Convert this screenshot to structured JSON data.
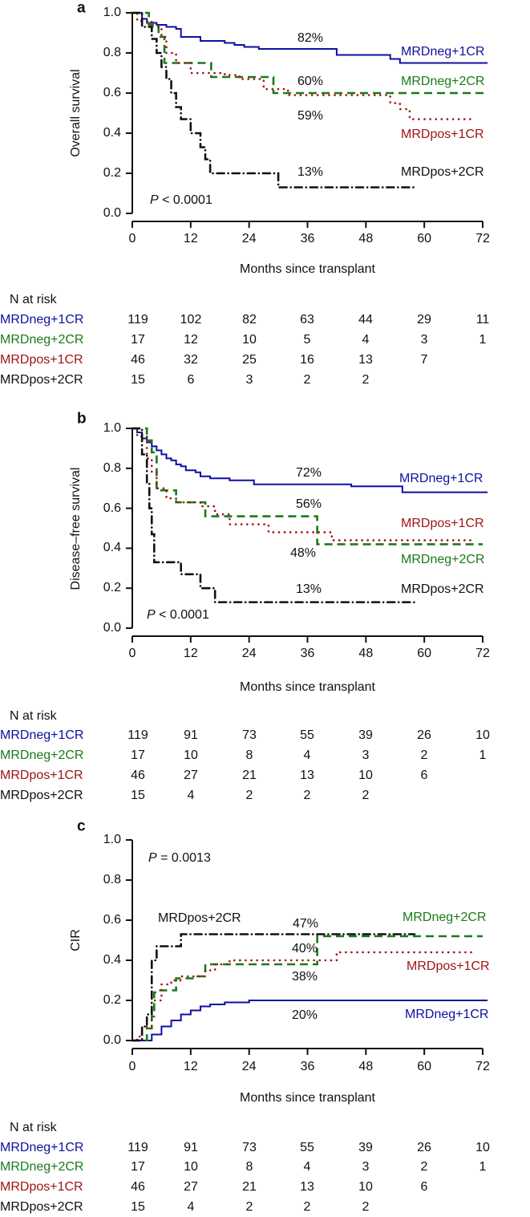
{
  "chart_data": [
    {
      "type": "line",
      "panel": "a",
      "title": "",
      "xlabel": "Months since transplant",
      "ylabel": "Overall survival",
      "xlim": [
        0,
        72
      ],
      "ylim": [
        0,
        1
      ],
      "xticks": [
        "0",
        "12",
        "24",
        "36",
        "48",
        "60",
        "72"
      ],
      "yticks": [
        "0.0",
        "0.2",
        "0.4",
        "0.6",
        "0.8",
        "1.0"
      ],
      "p_value": {
        "italic": "P",
        "text": " < 0.0001"
      },
      "series": [
        {
          "name": "MRDneg+1CR",
          "color": "#0f0fa0",
          "style": "solid",
          "annotation": "82%",
          "points": [
            [
              0,
              1
            ],
            [
              1,
              1
            ],
            [
              2,
              0.97
            ],
            [
              3,
              0.95
            ],
            [
              5,
              0.94
            ],
            [
              7,
              0.93
            ],
            [
              9,
              0.92
            ],
            [
              10,
              0.88
            ],
            [
              14,
              0.86
            ],
            [
              19,
              0.85
            ],
            [
              21,
              0.84
            ],
            [
              23,
              0.83
            ],
            [
              26,
              0.82
            ],
            [
              42,
              0.79
            ],
            [
              45,
              0.79
            ],
            [
              53,
              0.77
            ],
            [
              55,
              0.75
            ],
            [
              73,
              0.75
            ]
          ]
        },
        {
          "name": "MRDneg+2CR",
          "color": "#1a7a1a",
          "style": "dashed",
          "annotation": "60%",
          "points": [
            [
              0,
              1
            ],
            [
              3.4,
              0.94
            ],
            [
              5.4,
              0.88
            ],
            [
              6.6,
              0.75
            ],
            [
              16.2,
              0.68
            ],
            [
              29,
              0.6
            ],
            [
              72.5,
              0.6
            ]
          ]
        },
        {
          "name": "MRDpos+1CR",
          "color": "#a01414",
          "style": "dotted",
          "annotation": "59%",
          "points": [
            [
              0,
              1
            ],
            [
              1,
              0.96
            ],
            [
              4,
              0.93
            ],
            [
              6,
              0.88
            ],
            [
              7,
              0.8
            ],
            [
              9,
              0.75
            ],
            [
              12,
              0.7
            ],
            [
              19,
              0.69
            ],
            [
              22,
              0.67
            ],
            [
              27,
              0.62
            ],
            [
              32,
              0.59
            ],
            [
              53,
              0.55
            ],
            [
              55,
              0.52
            ],
            [
              57,
              0.47
            ],
            [
              70,
              0.47
            ]
          ]
        },
        {
          "name": "MRDpos+2CR",
          "color": "#111111",
          "style": "dashdot",
          "annotation": "13%",
          "points": [
            [
              0,
              1
            ],
            [
              2,
              0.93
            ],
            [
              4,
              0.87
            ],
            [
              5,
              0.8
            ],
            [
              6,
              0.73
            ],
            [
              7,
              0.67
            ],
            [
              8,
              0.6
            ],
            [
              9,
              0.53
            ],
            [
              10,
              0.47
            ],
            [
              12,
              0.4
            ],
            [
              14,
              0.33
            ],
            [
              15,
              0.27
            ],
            [
              16,
              0.2
            ],
            [
              30,
              0.13
            ],
            [
              58.5,
              0.13
            ]
          ]
        }
      ],
      "risk_table": {
        "header": "N at risk",
        "rows": [
          {
            "name": "MRDneg+1CR",
            "values": [
              "119",
              "102",
              "82",
              "63",
              "44",
              "29",
              "11"
            ]
          },
          {
            "name": "MRDneg+2CR",
            "values": [
              "17",
              "12",
              "10",
              "5",
              "4",
              "3",
              "1"
            ]
          },
          {
            "name": "MRDpos+1CR",
            "values": [
              "46",
              "32",
              "25",
              "16",
              "13",
              "7",
              ""
            ]
          },
          {
            "name": "MRDpos+2CR",
            "values": [
              "15",
              "6",
              "3",
              "2",
              "2",
              "",
              ""
            ]
          }
        ]
      }
    },
    {
      "type": "line",
      "panel": "b",
      "title": "",
      "xlabel": "Months since transplant",
      "ylabel": "Disease–free survival",
      "xlim": [
        0,
        72
      ],
      "ylim": [
        0,
        1
      ],
      "xticks": [
        "0",
        "12",
        "24",
        "36",
        "48",
        "60",
        "72"
      ],
      "yticks": [
        "0.0",
        "0.2",
        "0.4",
        "0.6",
        "0.8",
        "1.0"
      ],
      "p_value": {
        "italic": "P",
        "text": " < 0.0001"
      },
      "series": [
        {
          "name": "MRDneg+1CR",
          "color": "#0f0fa0",
          "style": "solid",
          "annotation": "72%",
          "points": [
            [
              0,
              1
            ],
            [
              1,
              0.98
            ],
            [
              2,
              0.95
            ],
            [
              3,
              0.93
            ],
            [
              4,
              0.91
            ],
            [
              5,
              0.89
            ],
            [
              6,
              0.87
            ],
            [
              7,
              0.85
            ],
            [
              8,
              0.84
            ],
            [
              9,
              0.82
            ],
            [
              10,
              0.81
            ],
            [
              11,
              0.79
            ],
            [
              13,
              0.78
            ],
            [
              14,
              0.76
            ],
            [
              16,
              0.75
            ],
            [
              20,
              0.74
            ],
            [
              25,
              0.72
            ],
            [
              45,
              0.71
            ],
            [
              55.5,
              0.68
            ],
            [
              73,
              0.68
            ]
          ]
        },
        {
          "name": "MRDneg+2CR",
          "color": "#1a7a1a",
          "style": "dashed",
          "annotation": "56%",
          "points": [
            [
              0,
              1
            ],
            [
              3,
              0.94
            ],
            [
              4,
              0.88
            ],
            [
              5,
              0.69
            ],
            [
              9,
              0.63
            ],
            [
              15,
              0.56
            ],
            [
              38,
              0.42
            ],
            [
              72,
              0.42
            ]
          ]
        },
        {
          "name": "MRDpos+1CR",
          "color": "#a01414",
          "style": "dotted",
          "annotation": "48%",
          "points": [
            [
              0,
              1
            ],
            [
              1,
              0.96
            ],
            [
              3,
              0.85
            ],
            [
              4,
              0.78
            ],
            [
              5,
              0.7
            ],
            [
              7,
              0.65
            ],
            [
              9,
              0.63
            ],
            [
              14,
              0.61
            ],
            [
              17,
              0.57
            ],
            [
              20,
              0.52
            ],
            [
              28,
              0.48
            ],
            [
              41,
              0.44
            ],
            [
              70,
              0.44
            ]
          ]
        },
        {
          "name": "MRDpos+2CR",
          "color": "#111111",
          "style": "dashdot",
          "annotation": "13%",
          "points": [
            [
              0,
              1
            ],
            [
              2,
              0.87
            ],
            [
              3,
              0.73
            ],
            [
              3.5,
              0.6
            ],
            [
              4,
              0.47
            ],
            [
              4.5,
              0.33
            ],
            [
              10,
              0.27
            ],
            [
              14,
              0.2
            ],
            [
              17,
              0.13
            ],
            [
              58.5,
              0.13
            ]
          ]
        }
      ],
      "risk_table": {
        "header": "N at risk",
        "rows": [
          {
            "name": "MRDneg+1CR",
            "values": [
              "119",
              "91",
              "73",
              "55",
              "39",
              "26",
              "10"
            ]
          },
          {
            "name": "MRDneg+2CR",
            "values": [
              "17",
              "10",
              "8",
              "4",
              "3",
              "2",
              "1"
            ]
          },
          {
            "name": "MRDpos+1CR",
            "values": [
              "46",
              "27",
              "21",
              "13",
              "10",
              "6",
              ""
            ]
          },
          {
            "name": "MRDpos+2CR",
            "values": [
              "15",
              "4",
              "2",
              "2",
              "2",
              "",
              ""
            ]
          }
        ]
      }
    },
    {
      "type": "line",
      "panel": "c",
      "title": "",
      "xlabel": "Months since transplant",
      "ylabel": "CIR",
      "xlim": [
        0,
        72
      ],
      "ylim": [
        0,
        1
      ],
      "xticks": [
        "0",
        "12",
        "24",
        "36",
        "48",
        "60",
        "72"
      ],
      "yticks": [
        "0.0",
        "0.2",
        "0.4",
        "0.6",
        "0.8",
        "1.0"
      ],
      "p_value": {
        "italic": "P",
        "text": " = 0.0013"
      },
      "series": [
        {
          "name": "MRDneg+1CR",
          "color": "#0f0fa0",
          "style": "solid",
          "annotation": "20%",
          "points": [
            [
              0,
              0
            ],
            [
              2,
              0
            ],
            [
              4,
              0.03
            ],
            [
              6,
              0.07
            ],
            [
              8,
              0.1
            ],
            [
              10,
              0.13
            ],
            [
              12,
              0.15
            ],
            [
              14,
              0.17
            ],
            [
              16,
              0.18
            ],
            [
              19,
              0.19
            ],
            [
              24,
              0.2
            ],
            [
              73,
              0.2
            ]
          ]
        },
        {
          "name": "MRDneg+2CR",
          "color": "#1a7a1a",
          "style": "dashed",
          "annotation": "38%",
          "points": [
            [
              0,
              0
            ],
            [
              3,
              0.06
            ],
            [
              4,
              0.12
            ],
            [
              4.5,
              0.24
            ],
            [
              5,
              0.25
            ],
            [
              9,
              0.31
            ],
            [
              13,
              0.32
            ],
            [
              15,
              0.38
            ],
            [
              38,
              0.52
            ],
            [
              72,
              0.52
            ]
          ]
        },
        {
          "name": "MRDpos+1CR",
          "color": "#a01414",
          "style": "dotted",
          "annotation": "40%",
          "points": [
            [
              0,
              0
            ],
            [
              1,
              0.02
            ],
            [
              2,
              0.07
            ],
            [
              4,
              0.2
            ],
            [
              6,
              0.28
            ],
            [
              8,
              0.3
            ],
            [
              10,
              0.32
            ],
            [
              15,
              0.35
            ],
            [
              17,
              0.38
            ],
            [
              20,
              0.4
            ],
            [
              42,
              0.44
            ],
            [
              70,
              0.44
            ]
          ]
        },
        {
          "name": "MRDpos+2CR",
          "color": "#111111",
          "style": "dashdot",
          "annotation": "47%",
          "points": [
            [
              0,
              0
            ],
            [
              2,
              0.07
            ],
            [
              3,
              0.13
            ],
            [
              4,
              0.4
            ],
            [
              5,
              0.47
            ],
            [
              10,
              0.53
            ],
            [
              58,
              0.53
            ]
          ]
        }
      ],
      "risk_table": {
        "header": "N at risk",
        "rows": [
          {
            "name": "MRDneg+1CR",
            "values": [
              "119",
              "91",
              "73",
              "55",
              "39",
              "26",
              "10"
            ]
          },
          {
            "name": "MRDneg+2CR",
            "values": [
              "17",
              "10",
              "8",
              "4",
              "3",
              "2",
              "1"
            ]
          },
          {
            "name": "MRDpos+1CR",
            "values": [
              "46",
              "27",
              "21",
              "13",
              "10",
              "6",
              ""
            ]
          },
          {
            "name": "MRDpos+2CR",
            "values": [
              "15",
              "4",
              "2",
              "2",
              "2",
              "",
              ""
            ]
          }
        ]
      }
    }
  ],
  "panel_letters": [
    "a",
    "b",
    "c"
  ]
}
